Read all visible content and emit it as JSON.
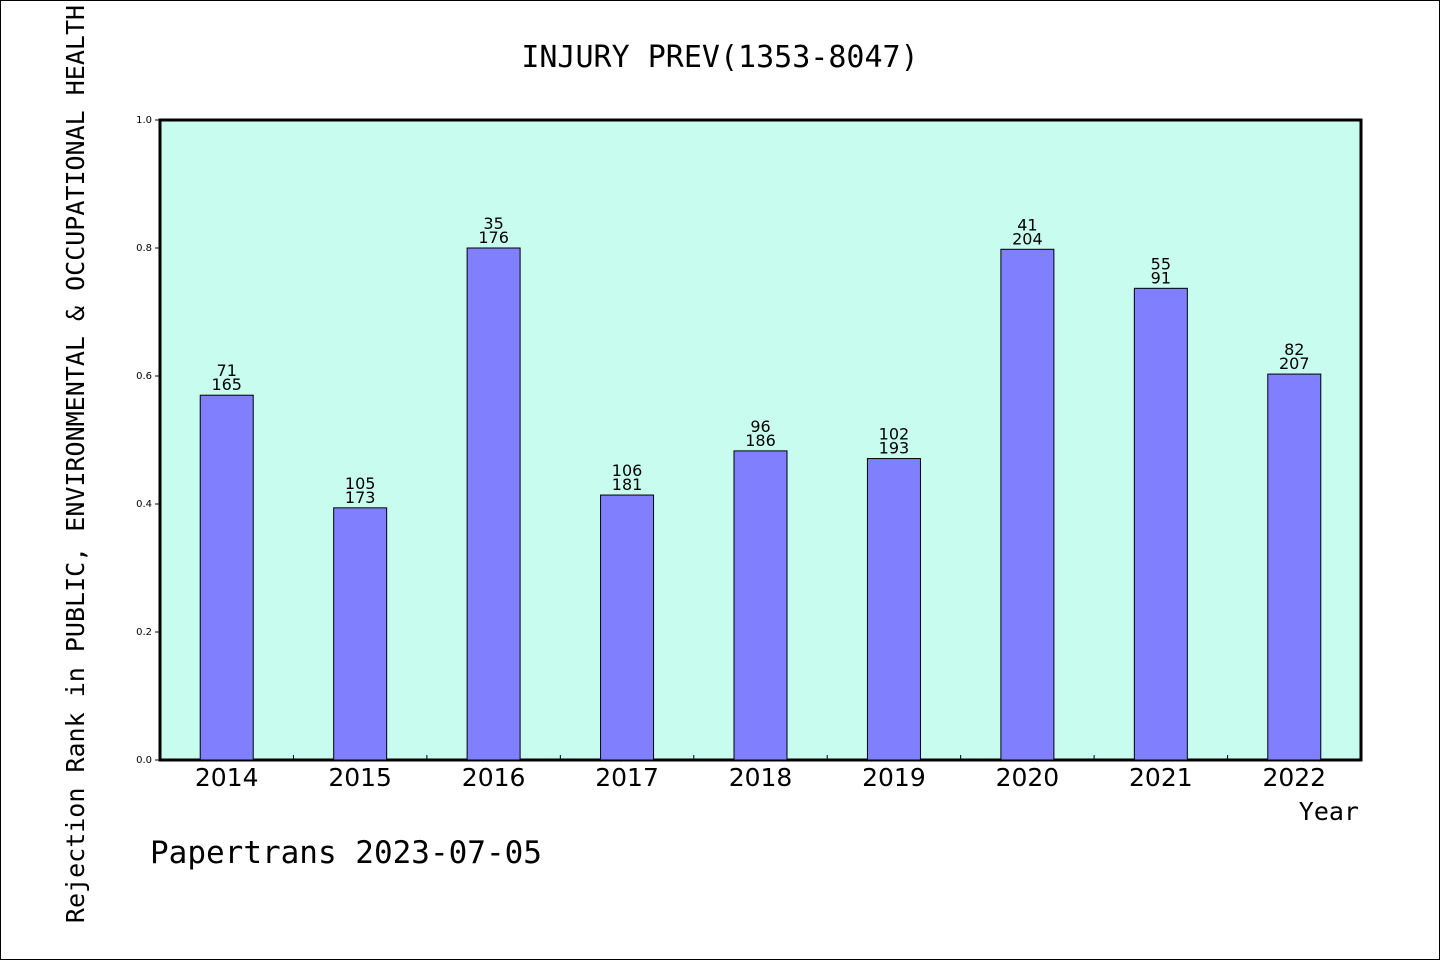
{
  "chart_data": {
    "type": "bar",
    "title": "INJURY PREV(1353-8047)",
    "xlabel": "Year",
    "ylabel": "Rejection Rank in PUBLIC, ENVIRONMENTAL & OCCUPATIONAL HEALTH",
    "ylim": [
      0,
      1.0
    ],
    "yticks": [
      "0.0",
      "0.2",
      "0.4",
      "0.6",
      "0.8",
      "1.0"
    ],
    "categories": [
      "2014",
      "2015",
      "2016",
      "2017",
      "2018",
      "2019",
      "2020",
      "2021",
      "2022"
    ],
    "values": [
      0.57,
      0.394,
      0.8,
      0.414,
      0.483,
      0.471,
      0.798,
      0.737,
      0.603
    ],
    "labels_top": [
      "71",
      "105",
      "35",
      "106",
      "96",
      "102",
      "41",
      "55",
      "82"
    ],
    "labels_bottom": [
      "165",
      "173",
      "176",
      "181",
      "186",
      "193",
      "204",
      "91",
      "207"
    ],
    "grid": false,
    "colors": {
      "plot_background": "#c8fcee",
      "bar_fill": "#8080ff",
      "bar_stroke": "#000000"
    }
  },
  "footer": {
    "credit": "Papertrans 2023-07-05"
  }
}
